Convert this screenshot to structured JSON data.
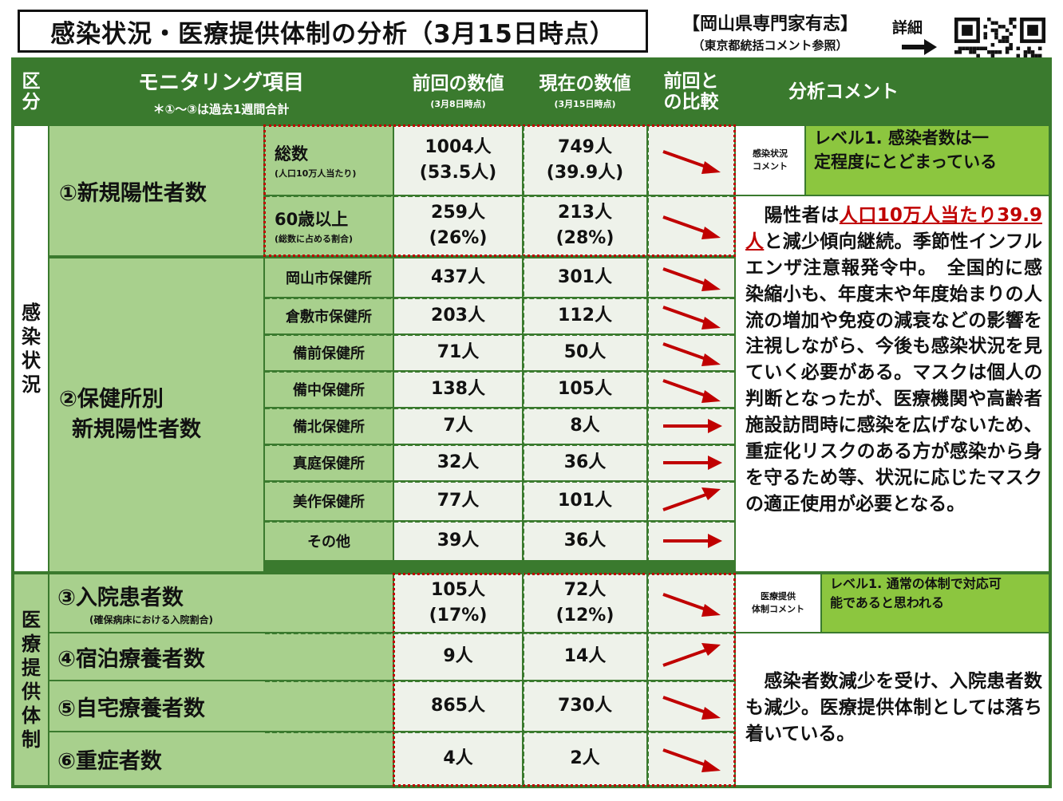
{
  "title": "感染状況・医療提供体制の分析（3月15日時点）",
  "org": {
    "name": "【岡山県専門家有志】",
    "note": "（東京都統括コメント参照）"
  },
  "detail": "詳細",
  "colors": {
    "dark_green": "#3a7a2e",
    "light_green": "#a8d08d",
    "bright_green": "#8cc63f",
    "arrow_red": "#c00000"
  },
  "header": {
    "kubun": [
      "区",
      "分"
    ],
    "monitoring": "モニタリング項目",
    "monitoring_note": "＊①～③は過去1週間合計",
    "prev": "前回の数値",
    "prev_date": "(3月8日時点)",
    "curr": "現在の数値",
    "curr_date": "(3月15日時点)",
    "compare": [
      "前回と",
      "の比較"
    ],
    "analysis": "分析コメント"
  },
  "categories": {
    "infection": [
      "感",
      "染",
      "状",
      "況"
    ],
    "medical": [
      "医",
      "療",
      "提",
      "供",
      "体",
      "制"
    ]
  },
  "new_positive": {
    "label": "①新規陽性者数",
    "rows": [
      {
        "label": "総数",
        "note": "(人口10万人当たり)",
        "prev": "1004人",
        "prev_sub": "(53.5人)",
        "curr": "749人",
        "curr_sub": "(39.9人)",
        "trend": "down"
      },
      {
        "label": "60歳以上",
        "note": "(総数に占める割合)",
        "prev": "259人",
        "prev_sub": "(26%)",
        "curr": "213人",
        "curr_sub": "(28%)",
        "trend": "down"
      }
    ]
  },
  "health_center": {
    "label1": "②保健所別",
    "label2": "新規陽性者数",
    "rows": [
      {
        "label": "岡山市保健所",
        "prev": "437人",
        "curr": "301人",
        "trend": "down"
      },
      {
        "label": "倉敷市保健所",
        "prev": "203人",
        "curr": "112人",
        "trend": "down"
      },
      {
        "label": "備前保健所",
        "prev": "71人",
        "curr": "50人",
        "trend": "down"
      },
      {
        "label": "備中保健所",
        "prev": "138人",
        "curr": "105人",
        "trend": "down"
      },
      {
        "label": "備北保健所",
        "prev": "7人",
        "curr": "8人",
        "trend": "flat"
      },
      {
        "label": "真庭保健所",
        "prev": "32人",
        "curr": "36人",
        "trend": "flat"
      },
      {
        "label": "美作保健所",
        "prev": "77人",
        "curr": "101人",
        "trend": "up"
      },
      {
        "label": "その他",
        "prev": "39人",
        "curr": "36人",
        "trend": "flat"
      }
    ]
  },
  "medical_rows": [
    {
      "label": "③入院患者数",
      "note": "(確保病床における入院割合)",
      "prev": "105人",
      "prev_sub": "(17%)",
      "curr": "72人",
      "curr_sub": "(12%)",
      "trend": "down"
    },
    {
      "label": "④宿泊療養者数",
      "prev": "9人",
      "curr": "14人",
      "trend": "up"
    },
    {
      "label": "⑤自宅療養者数",
      "prev": "865人",
      "curr": "730人",
      "trend": "down"
    },
    {
      "label": "⑥重症者数",
      "prev": "4人",
      "curr": "2人",
      "trend": "down"
    }
  ],
  "infection_comment": {
    "label": [
      "感染状況",
      "コメント"
    ],
    "level": [
      "レベル1. 感染者数は一",
      "定程度にとどまっている"
    ],
    "text_before": "　陽性者は",
    "highlight": "人口10万人当たり39.9人",
    "text_after": "と減少傾向継続。季節性インフルエンザ注意報発令中。　全国的に感染縮小も、年度末や年度始まりの人流の増加や免疫の減衰などの影響を注視しながら、今後も感染状況を見ていく必要がある。マスクは個人の判断となったが、医療機関や高齢者施設訪問時に感染を広げないため、重症化リスクのある方が感染から身を守るため等、状況に応じたマスクの適正使用が必要となる。"
  },
  "medical_comment": {
    "label": [
      "医療提供",
      "体制コメント"
    ],
    "level": [
      "レベル1. 通常の体制で対応可",
      "能であると思われる"
    ],
    "text": "　感染者数減少を受け、入院患者数も減少。医療提供体制としては落ち着いている。"
  }
}
